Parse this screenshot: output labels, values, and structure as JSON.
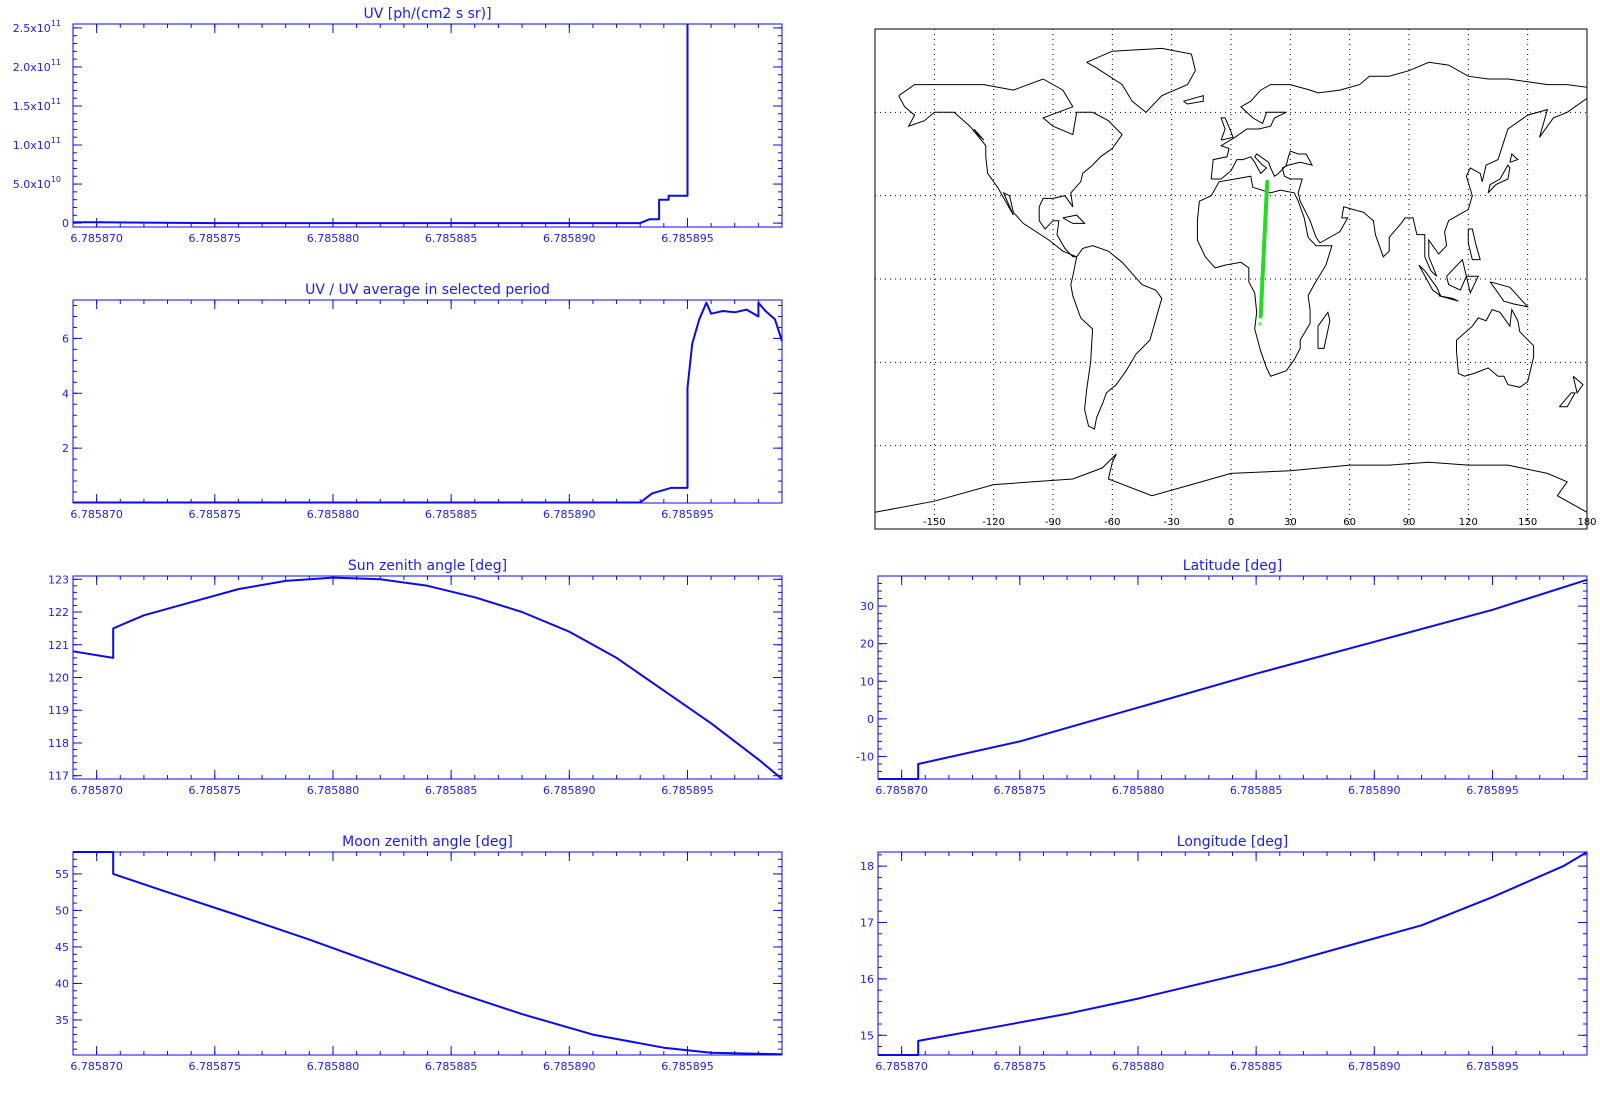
{
  "colors": {
    "plot": "#0a0af0",
    "text": "#1a1aff",
    "track": "#22dd22",
    "map": "#000000"
  },
  "chart_data": [
    {
      "id": "uv",
      "type": "line",
      "title": "UV [ph/(cm2 s sr)]",
      "xlim": [
        6.785869,
        6.785899
      ],
      "xticks": [
        "6.785870",
        "6.785875",
        "6.785880",
        "6.785885",
        "6.785890",
        "6.785895"
      ],
      "ylim": [
        -5000000000.0,
        255000000000.0
      ],
      "yticks": [
        {
          "v": 0,
          "t": "0"
        },
        {
          "v": 50000000000.0,
          "t": "5.0x10",
          "e": "10"
        },
        {
          "v": 100000000000.0,
          "t": "1.0x10",
          "e": "11"
        },
        {
          "v": 150000000000.0,
          "t": "1.5x10",
          "e": "11"
        },
        {
          "v": 200000000000.0,
          "t": "2.0x10",
          "e": "11"
        },
        {
          "v": 250000000000.0,
          "t": "2.5x10",
          "e": "11"
        }
      ],
      "x": [
        6.785869,
        6.78587,
        6.785875,
        6.78588,
        6.785885,
        6.78589,
        6.785893,
        6.7858934,
        6.7858938,
        6.7858938,
        6.7858942,
        6.7858942,
        6.785895,
        6.785895
      ],
      "y": [
        1000000000.0,
        1000000000.0,
        0,
        0,
        0,
        0,
        0,
        5000000000.0,
        5000000000.0,
        30000000000.0,
        30000000000.0,
        35000000000.0,
        35000000000.0,
        255000000000.0
      ]
    },
    {
      "id": "ratio",
      "type": "line",
      "title": "UV / UV average in selected period",
      "xlim": [
        6.785869,
        6.785899
      ],
      "xticks": [
        "6.785870",
        "6.785875",
        "6.785880",
        "6.785885",
        "6.785890",
        "6.785895"
      ],
      "ylim": [
        0,
        7.4
      ],
      "yticks": [
        {
          "v": 2,
          "t": "2"
        },
        {
          "v": 4,
          "t": "4"
        },
        {
          "v": 6,
          "t": "6"
        }
      ],
      "x": [
        6.785869,
        6.785893,
        6.7858935,
        6.7858943,
        6.785895,
        6.785895,
        6.7858952,
        6.7858955,
        6.7858958,
        6.785896,
        6.7858965,
        6.785897,
        6.7858975,
        6.785898,
        6.785898,
        6.7858983,
        6.7858987,
        6.785899
      ],
      "y": [
        0.02,
        0.02,
        0.35,
        0.55,
        0.55,
        4.2,
        5.8,
        6.7,
        7.3,
        6.9,
        7.0,
        6.95,
        7.05,
        6.8,
        7.3,
        7.0,
        6.7,
        5.9
      ]
    },
    {
      "id": "sun",
      "type": "line",
      "title": "Sun zenith angle [deg]",
      "xlim": [
        6.785869,
        6.785899
      ],
      "xticks": [
        "6.785870",
        "6.785875",
        "6.785880",
        "6.785885",
        "6.785890",
        "6.785895"
      ],
      "ylim": [
        116.9,
        123.1
      ],
      "yticks": [
        {
          "v": 117,
          "t": "117"
        },
        {
          "v": 118,
          "t": "118"
        },
        {
          "v": 119,
          "t": "119"
        },
        {
          "v": 120,
          "t": "120"
        },
        {
          "v": 121,
          "t": "121"
        },
        {
          "v": 122,
          "t": "122"
        },
        {
          "v": 123,
          "t": "123"
        }
      ],
      "x": [
        6.785869,
        6.7858707,
        6.7858707,
        6.785872,
        6.785874,
        6.785876,
        6.785878,
        6.78588,
        6.785882,
        6.785884,
        6.785886,
        6.785888,
        6.78589,
        6.785892,
        6.785894,
        6.785896,
        6.785898,
        6.785899
      ],
      "y": [
        120.8,
        120.6,
        121.5,
        121.9,
        122.3,
        122.7,
        122.95,
        123.05,
        123.0,
        122.8,
        122.45,
        122.0,
        121.4,
        120.6,
        119.6,
        118.6,
        117.5,
        116.9
      ]
    },
    {
      "id": "lat",
      "type": "line",
      "title": "Latitude [deg]",
      "xlim": [
        6.785869,
        6.785899
      ],
      "xticks": [
        "6.785870",
        "6.785875",
        "6.785880",
        "6.785885",
        "6.785890",
        "6.785895"
      ],
      "ylim": [
        -16,
        38
      ],
      "yticks": [
        {
          "v": -10,
          "t": "-10"
        },
        {
          "v": 0,
          "t": "0"
        },
        {
          "v": 10,
          "t": "10"
        },
        {
          "v": 20,
          "t": "20"
        },
        {
          "v": 30,
          "t": "30"
        }
      ],
      "x": [
        6.785869,
        6.7858707,
        6.7858707,
        6.785875,
        6.78588,
        6.785885,
        6.78589,
        6.785895,
        6.785899
      ],
      "y": [
        -16,
        -16,
        -12,
        -6,
        3,
        12,
        20.5,
        29,
        37
      ]
    },
    {
      "id": "moon",
      "type": "line",
      "title": "Moon zenith angle [deg]",
      "xlim": [
        6.785869,
        6.785899
      ],
      "xticks": [
        "6.785870",
        "6.785875",
        "6.785880",
        "6.785885",
        "6.785890",
        "6.785895"
      ],
      "ylim": [
        30.2,
        58
      ],
      "yticks": [
        {
          "v": 35,
          "t": "35"
        },
        {
          "v": 40,
          "t": "40"
        },
        {
          "v": 45,
          "t": "45"
        },
        {
          "v": 50,
          "t": "50"
        },
        {
          "v": 55,
          "t": "55"
        }
      ],
      "x": [
        6.785869,
        6.7858707,
        6.7858707,
        6.785873,
        6.785876,
        6.785879,
        6.785882,
        6.785885,
        6.785888,
        6.785891,
        6.785894,
        6.785896,
        6.785899
      ],
      "y": [
        58,
        58,
        55,
        52.5,
        49.3,
        46.0,
        42.5,
        39.0,
        35.8,
        33.0,
        31.2,
        30.5,
        30.3
      ]
    },
    {
      "id": "lon",
      "type": "line",
      "title": "Longitude [deg]",
      "xlim": [
        6.785869,
        6.785899
      ],
      "xticks": [
        "6.785870",
        "6.785875",
        "6.785880",
        "6.785885",
        "6.785890",
        "6.785895"
      ],
      "ylim": [
        14.65,
        18.25
      ],
      "yticks": [
        {
          "v": 15,
          "t": "15"
        },
        {
          "v": 16,
          "t": "16"
        },
        {
          "v": 17,
          "t": "17"
        },
        {
          "v": 18,
          "t": "18"
        }
      ],
      "x": [
        6.785869,
        6.7858707,
        6.7858707,
        6.785874,
        6.785877,
        6.78588,
        6.785883,
        6.785886,
        6.785889,
        6.785892,
        6.785895,
        6.785898,
        6.785899
      ],
      "y": [
        14.65,
        14.65,
        14.9,
        15.15,
        15.38,
        15.65,
        15.95,
        16.25,
        16.6,
        16.95,
        17.45,
        18.0,
        18.25
      ]
    }
  ],
  "map": {
    "xlabels": [
      "-150",
      "-120",
      "-90",
      "-60",
      "-30",
      "0",
      "30",
      "60",
      "90",
      "120",
      "150",
      "180"
    ],
    "lon_range": [
      -180,
      180
    ],
    "lat_range": [
      -90,
      90
    ],
    "track": {
      "lon": [
        15.0,
        18.3
      ],
      "lat": [
        -13.5,
        35.0
      ]
    }
  }
}
